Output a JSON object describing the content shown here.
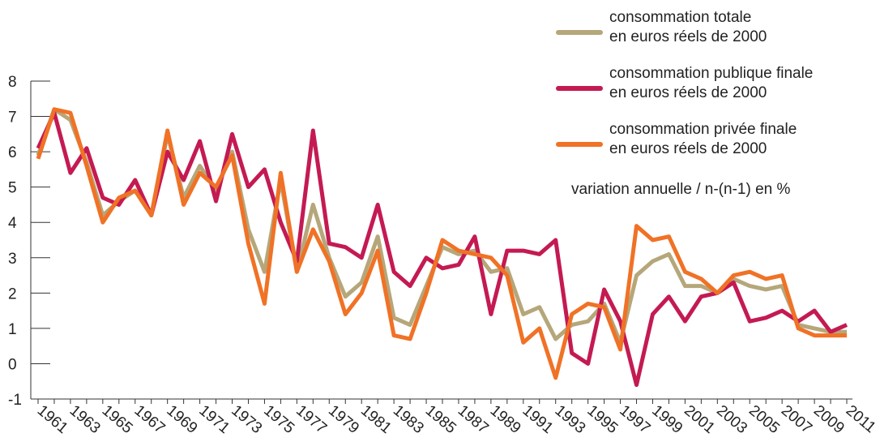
{
  "chart_data": {
    "type": "line",
    "categories": [
      "1961",
      null,
      "1963",
      null,
      "1965",
      null,
      "1967",
      null,
      "1969",
      null,
      "1971",
      null,
      "1973",
      null,
      "1975",
      null,
      "1977",
      null,
      "1979",
      null,
      "1981",
      null,
      "1983",
      null,
      "1985",
      null,
      "1987",
      null,
      "1989",
      null,
      "1991",
      null,
      "1993",
      null,
      "1995",
      null,
      "1997",
      null,
      "1999",
      null,
      "2001",
      null,
      "2003",
      null,
      "2005",
      null,
      "2007",
      null,
      "2009",
      null,
      "2011"
    ],
    "series": [
      {
        "name": "consommation totale\nen euros réels de 2000",
        "color": "#b5a77a",
        "values": [
          5.9,
          7.2,
          6.9,
          5.7,
          4.2,
          4.6,
          4.9,
          4.2,
          6.5,
          4.7,
          5.6,
          4.9,
          6.0,
          3.8,
          2.6,
          5.2,
          2.6,
          4.5,
          3.0,
          1.9,
          2.3,
          3.6,
          1.3,
          1.1,
          2.2,
          3.3,
          3.1,
          3.2,
          2.6,
          2.7,
          1.4,
          1.6,
          0.7,
          1.1,
          1.2,
          1.7,
          0.6,
          2.5,
          2.9,
          3.1,
          2.2,
          2.2,
          2.0,
          2.4,
          2.2,
          2.1,
          2.2,
          1.1,
          1.0,
          0.9,
          0.9
        ]
      },
      {
        "name": "consommation publique finale\nen euros réels de 2000",
        "color": "#c41a52",
        "values": [
          6.1,
          7.1,
          5.4,
          6.1,
          4.7,
          4.5,
          5.2,
          4.2,
          6.0,
          5.2,
          6.3,
          4.6,
          6.5,
          5.0,
          5.5,
          4.0,
          2.9,
          6.6,
          3.4,
          3.3,
          3.0,
          4.5,
          2.6,
          2.2,
          3.0,
          2.7,
          2.8,
          3.6,
          1.4,
          3.2,
          3.2,
          3.1,
          3.5,
          0.3,
          0.0,
          2.1,
          1.2,
          -0.6,
          1.4,
          1.9,
          1.2,
          1.9,
          2.0,
          2.3,
          1.2,
          1.3,
          1.5,
          1.2,
          1.5,
          0.9,
          1.1
        ]
      },
      {
        "name": "consommation privée finale\nen euros réels de 2000",
        "color": "#f07226",
        "values": [
          5.8,
          7.2,
          7.1,
          5.6,
          4.0,
          4.7,
          4.9,
          4.2,
          6.6,
          4.5,
          5.4,
          5.0,
          5.9,
          3.4,
          1.7,
          5.4,
          2.6,
          3.8,
          2.9,
          1.4,
          2.0,
          3.2,
          0.8,
          0.7,
          2.0,
          3.5,
          3.2,
          3.1,
          3.0,
          2.5,
          0.6,
          1.0,
          -0.4,
          1.4,
          1.7,
          1.6,
          0.4,
          3.9,
          3.5,
          3.6,
          2.6,
          2.4,
          2.0,
          2.5,
          2.6,
          2.4,
          2.5,
          1.0,
          0.8,
          0.8,
          0.8
        ]
      }
    ],
    "annotation": "variation annuelle / n-(n-1) en %",
    "ylim": [
      -1,
      8
    ],
    "yticks": [
      -1,
      0,
      1,
      2,
      3,
      4,
      5,
      6,
      7,
      8
    ]
  }
}
